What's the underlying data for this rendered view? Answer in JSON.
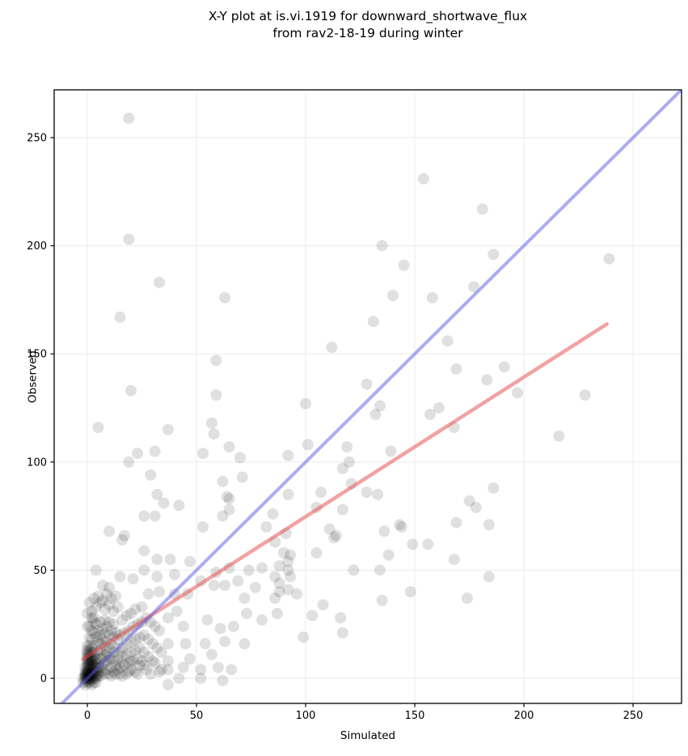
{
  "figure": {
    "title_line1": "X-Y plot at is.vi.1919 for downward_shortwave_flux",
    "title_line2": "from rav2-18-19 during winter"
  },
  "chart_data": {
    "type": "scatter",
    "title": "X-Y plot at is.vi.1919 for downward_shortwave_flux from rav2-18-19 during winter",
    "xlabel": "Simulated",
    "ylabel": "Observed",
    "xlim": [
      -15.2,
      272.2
    ],
    "ylim": [
      -11.6,
      272.1
    ],
    "xticks": [
      0,
      50,
      100,
      150,
      200,
      250
    ],
    "yticks": [
      0,
      50,
      100,
      150,
      200,
      250
    ],
    "grid": true,
    "legend": "none",
    "point_style": {
      "color": "#000000",
      "opacity": 0.12,
      "radius_px": 7
    },
    "colors": {
      "one_to_one": "#5a5ae6",
      "one_to_one_opacity": 0.5,
      "regression": "#e64545",
      "regression_opacity": 0.5,
      "grid": "#ebebeb",
      "axis": "#000000"
    },
    "lines": [
      {
        "name": "regression-line",
        "from": [
          -2,
          8.9
        ],
        "to": [
          238,
          163.8
        ],
        "color_key": "regression",
        "width": 4.5
      },
      {
        "name": "one-to-one-line",
        "from": [
          -11.6,
          -11.6
        ],
        "to": [
          272.1,
          272.1
        ],
        "color_key": "one_to_one",
        "width": 4
      }
    ],
    "points": [
      [
        19,
        259
      ],
      [
        19,
        203
      ],
      [
        33,
        183
      ],
      [
        63,
        176
      ],
      [
        15,
        167
      ],
      [
        5,
        116
      ],
      [
        20,
        133
      ],
      [
        154,
        231
      ],
      [
        181,
        217
      ],
      [
        135,
        200
      ],
      [
        186,
        196
      ],
      [
        239,
        194
      ],
      [
        145,
        191
      ],
      [
        177,
        181
      ],
      [
        140,
        177
      ],
      [
        158,
        176
      ],
      [
        131,
        165
      ],
      [
        165,
        156
      ],
      [
        112,
        153
      ],
      [
        169,
        143
      ],
      [
        191,
        144
      ],
      [
        183,
        138
      ],
      [
        197,
        132
      ],
      [
        228,
        131
      ],
      [
        134,
        126
      ],
      [
        132,
        122
      ],
      [
        161,
        125
      ],
      [
        157,
        122
      ],
      [
        168,
        116
      ],
      [
        216,
        112
      ],
      [
        139,
        105
      ],
      [
        59,
        147
      ],
      [
        59,
        131
      ],
      [
        100,
        127
      ],
      [
        128,
        136
      ],
      [
        37,
        115
      ],
      [
        57,
        118
      ],
      [
        58,
        113
      ],
      [
        65,
        107
      ],
      [
        53,
        104
      ],
      [
        23,
        104
      ],
      [
        31,
        105
      ],
      [
        19,
        100
      ],
      [
        70,
        102
      ],
      [
        92,
        103
      ],
      [
        101,
        108
      ],
      [
        119,
        107
      ],
      [
        120,
        100
      ],
      [
        117,
        97
      ],
      [
        29,
        94
      ],
      [
        71,
        93
      ],
      [
        62,
        91
      ],
      [
        121,
        90
      ],
      [
        32,
        85
      ],
      [
        64,
        84
      ],
      [
        65,
        83
      ],
      [
        35,
        81
      ],
      [
        42,
        80
      ],
      [
        65,
        78
      ],
      [
        92,
        85
      ],
      [
        107,
        86
      ],
      [
        105,
        79
      ],
      [
        117,
        78
      ],
      [
        26,
        75
      ],
      [
        31,
        75
      ],
      [
        62,
        75
      ],
      [
        82,
        70
      ],
      [
        85,
        76
      ],
      [
        53,
        70
      ],
      [
        10,
        68
      ],
      [
        17,
        66
      ],
      [
        16,
        64
      ],
      [
        111,
        69
      ],
      [
        114,
        66
      ],
      [
        91,
        67
      ],
      [
        86,
        63
      ],
      [
        186,
        88
      ],
      [
        133,
        85
      ],
      [
        128,
        86
      ],
      [
        175,
        82
      ],
      [
        178,
        79
      ],
      [
        169,
        72
      ],
      [
        184,
        71
      ],
      [
        143,
        71
      ],
      [
        144,
        70
      ],
      [
        136,
        68
      ],
      [
        149,
        62
      ],
      [
        156,
        62
      ],
      [
        138,
        57
      ],
      [
        168,
        55
      ],
      [
        134,
        50
      ],
      [
        184,
        47
      ],
      [
        148,
        40
      ],
      [
        135,
        36
      ],
      [
        174,
        37
      ],
      [
        90,
        58
      ],
      [
        105,
        58
      ],
      [
        113,
        65
      ],
      [
        92,
        54
      ],
      [
        92,
        50
      ],
      [
        93,
        47
      ],
      [
        88,
        44
      ],
      [
        88,
        40
      ],
      [
        87,
        30
      ],
      [
        96,
        39
      ],
      [
        108,
        34
      ],
      [
        103,
        29
      ],
      [
        116,
        28
      ],
      [
        117,
        21
      ],
      [
        99,
        19
      ],
      [
        86,
        37
      ],
      [
        122,
        50
      ],
      [
        4,
        50
      ],
      [
        0,
        24
      ],
      [
        3,
        28
      ],
      [
        7,
        43
      ],
      [
        10,
        42
      ],
      [
        15,
        47
      ],
      [
        21,
        46
      ],
      [
        26,
        50
      ],
      [
        32,
        47
      ],
      [
        40,
        48
      ],
      [
        47,
        54
      ],
      [
        28,
        39
      ],
      [
        33,
        40
      ],
      [
        40,
        39
      ],
      [
        46,
        39
      ],
      [
        41,
        31
      ],
      [
        37,
        28
      ],
      [
        44,
        24
      ],
      [
        55,
        27
      ],
      [
        61,
        23
      ],
      [
        67,
        24
      ],
      [
        73,
        30
      ],
      [
        80,
        27
      ],
      [
        92,
        41
      ],
      [
        86,
        47
      ],
      [
        77,
        42
      ],
      [
        72,
        37
      ],
      [
        69,
        45
      ],
      [
        63,
        43
      ],
      [
        58,
        43
      ],
      [
        52,
        45
      ],
      [
        59,
        49
      ],
      [
        65,
        51
      ],
      [
        74,
        50
      ],
      [
        80,
        51
      ],
      [
        88,
        52
      ],
      [
        93,
        57
      ],
      [
        45,
        16
      ],
      [
        37,
        16
      ],
      [
        54,
        16
      ],
      [
        63,
        17
      ],
      [
        72,
        16
      ],
      [
        57,
        11
      ],
      [
        47,
        9
      ],
      [
        37,
        8
      ],
      [
        44,
        5
      ],
      [
        52,
        4
      ],
      [
        60,
        5
      ],
      [
        66,
        4
      ],
      [
        52,
        0
      ],
      [
        42,
        0
      ],
      [
        62,
        -1
      ],
      [
        37,
        -3
      ],
      [
        26,
        59
      ],
      [
        32,
        55
      ],
      [
        38,
        55
      ],
      [
        16,
        7
      ],
      [
        20,
        8
      ],
      [
        26,
        6
      ],
      [
        31,
        7
      ],
      [
        34,
        4
      ],
      [
        37,
        4
      ],
      [
        19,
        3
      ],
      [
        23,
        2
      ],
      [
        15,
        2
      ],
      [
        11,
        1
      ],
      [
        0,
        0
      ],
      [
        0,
        1
      ],
      [
        1,
        0
      ],
      [
        -1,
        0
      ],
      [
        0,
        -1
      ],
      [
        1,
        1
      ],
      [
        0,
        2
      ],
      [
        2,
        1
      ],
      [
        1,
        2
      ],
      [
        -1,
        1
      ],
      [
        1,
        -1
      ],
      [
        2,
        0
      ],
      [
        0,
        3
      ],
      [
        1,
        3
      ],
      [
        2,
        2
      ],
      [
        3,
        1
      ],
      [
        -1,
        -1
      ],
      [
        2,
        3
      ],
      [
        3,
        0
      ],
      [
        0,
        4
      ],
      [
        1,
        4
      ],
      [
        2,
        4
      ],
      [
        3,
        3
      ],
      [
        -1,
        2
      ],
      [
        0,
        5
      ],
      [
        1,
        5
      ],
      [
        2,
        5
      ],
      [
        3,
        5
      ],
      [
        4,
        1
      ],
      [
        4,
        3
      ],
      [
        0,
        6
      ],
      [
        1,
        6
      ],
      [
        2,
        6
      ],
      [
        4,
        5
      ],
      [
        3,
        6
      ],
      [
        0,
        7
      ],
      [
        1,
        7
      ],
      [
        2,
        7
      ],
      [
        -1,
        3
      ],
      [
        1,
        8
      ],
      [
        2,
        8
      ],
      [
        3,
        8
      ],
      [
        0,
        8
      ],
      [
        4,
        7
      ],
      [
        -1,
        5
      ],
      [
        0,
        9
      ],
      [
        1,
        9
      ],
      [
        2,
        9
      ],
      [
        3,
        2
      ],
      [
        4,
        0
      ],
      [
        5,
        1
      ],
      [
        5,
        3
      ],
      [
        0,
        -2
      ],
      [
        1,
        -2
      ],
      [
        2,
        -1
      ],
      [
        3,
        -2
      ],
      [
        -2,
        0
      ],
      [
        -2,
        -2
      ],
      [
        -1,
        -3
      ],
      [
        2,
        -3
      ],
      [
        4,
        -2
      ],
      [
        0,
        10
      ],
      [
        1,
        10
      ],
      [
        2,
        10
      ],
      [
        3,
        10
      ],
      [
        4,
        9
      ],
      [
        5,
        5
      ],
      [
        5,
        7
      ],
      [
        0,
        11
      ],
      [
        1,
        11
      ],
      [
        2,
        12
      ],
      [
        0,
        12
      ],
      [
        1,
        13
      ],
      [
        3,
        12
      ],
      [
        0,
        13
      ],
      [
        2,
        14
      ],
      [
        1,
        15
      ],
      [
        0,
        15
      ],
      [
        3,
        15
      ],
      [
        0,
        0
      ],
      [
        1,
        1
      ],
      [
        2,
        2
      ],
      [
        0,
        1
      ],
      [
        1,
        0
      ],
      [
        -1,
        1
      ],
      [
        0,
        2
      ],
      [
        1,
        2
      ],
      [
        0,
        3
      ],
      [
        5,
        2
      ],
      [
        6,
        1
      ],
      [
        7,
        3
      ],
      [
        8,
        2
      ],
      [
        6,
        5
      ],
      [
        7,
        6
      ],
      [
        8,
        7
      ],
      [
        9,
        4
      ],
      [
        10,
        2
      ],
      [
        11,
        5
      ],
      [
        12,
        3
      ],
      [
        9,
        8
      ],
      [
        6,
        9
      ],
      [
        7,
        10
      ],
      [
        8,
        11
      ],
      [
        5,
        12
      ],
      [
        6,
        13
      ],
      [
        9,
        12
      ],
      [
        10,
        10
      ],
      [
        11,
        9
      ],
      [
        12,
        8
      ],
      [
        13,
        6
      ],
      [
        14,
        4
      ],
      [
        12,
        12
      ],
      [
        10,
        14
      ],
      [
        8,
        15
      ],
      [
        6,
        16
      ],
      [
        5,
        17
      ],
      [
        7,
        18
      ],
      [
        9,
        17
      ],
      [
        11,
        16
      ],
      [
        13,
        14
      ],
      [
        15,
        12
      ],
      [
        14,
        9
      ],
      [
        13,
        2
      ],
      [
        15,
        5
      ],
      [
        4,
        19
      ],
      [
        6,
        20
      ],
      [
        8,
        21
      ],
      [
        10,
        20
      ],
      [
        12,
        19
      ],
      [
        14,
        18
      ],
      [
        5,
        22
      ],
      [
        7,
        23
      ],
      [
        9,
        24
      ],
      [
        11,
        22
      ],
      [
        13,
        21
      ],
      [
        15,
        20
      ],
      [
        4,
        25
      ],
      [
        6,
        26
      ],
      [
        8,
        27
      ],
      [
        10,
        26
      ],
      [
        12,
        25
      ],
      [
        3,
        21
      ],
      [
        2,
        18
      ],
      [
        2,
        22
      ],
      [
        3,
        26
      ],
      [
        1,
        19
      ],
      [
        1,
        24
      ],
      [
        2,
        28
      ],
      [
        16,
        1
      ],
      [
        18,
        2
      ],
      [
        20,
        4
      ],
      [
        22,
        3
      ],
      [
        24,
        6
      ],
      [
        17,
        6
      ],
      [
        19,
        7
      ],
      [
        21,
        8
      ],
      [
        23,
        9
      ],
      [
        25,
        8
      ],
      [
        16,
        10
      ],
      [
        18,
        11
      ],
      [
        20,
        12
      ],
      [
        22,
        13
      ],
      [
        24,
        14
      ],
      [
        26,
        12
      ],
      [
        28,
        10
      ],
      [
        30,
        8
      ],
      [
        27,
        4
      ],
      [
        29,
        2
      ],
      [
        33,
        3
      ],
      [
        16,
        14
      ],
      [
        18,
        16
      ],
      [
        20,
        17
      ],
      [
        22,
        18
      ],
      [
        24,
        19
      ],
      [
        26,
        20
      ],
      [
        28,
        18
      ],
      [
        30,
        16
      ],
      [
        32,
        14
      ],
      [
        34,
        12
      ],
      [
        17,
        21
      ],
      [
        19,
        22
      ],
      [
        21,
        24
      ],
      [
        23,
        25
      ],
      [
        25,
        26
      ],
      [
        27,
        28
      ],
      [
        29,
        26
      ],
      [
        31,
        24
      ],
      [
        33,
        22
      ],
      [
        16,
        27
      ],
      [
        18,
        29
      ],
      [
        20,
        30
      ],
      [
        22,
        32
      ],
      [
        25,
        33
      ],
      [
        2,
        31
      ],
      [
        4,
        33
      ],
      [
        6,
        35
      ],
      [
        8,
        32
      ],
      [
        10,
        34
      ],
      [
        12,
        31
      ],
      [
        14,
        33
      ],
      [
        3,
        37
      ],
      [
        5,
        38
      ],
      [
        7,
        36
      ],
      [
        9,
        39
      ],
      [
        11,
        37
      ],
      [
        13,
        38
      ],
      [
        1,
        35
      ],
      [
        0,
        30
      ]
    ]
  }
}
